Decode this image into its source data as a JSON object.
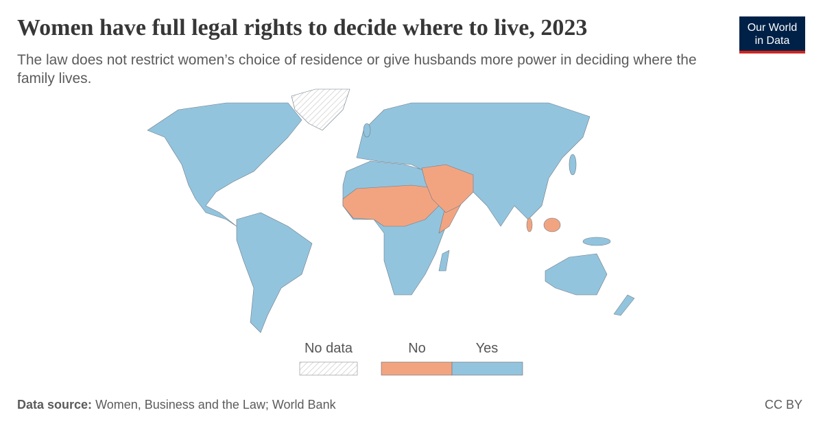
{
  "header": {
    "title": "Women have full legal rights to decide where to live, 2023",
    "subtitle": "The law does not restrict women’s choice of residence or give husbands more power in deciding where the family lives."
  },
  "logo": {
    "line1": "Our World",
    "line2": "in Data"
  },
  "legend": {
    "no_data": "No data",
    "categories": [
      {
        "label": "No",
        "color": "#f2a481"
      },
      {
        "label": "Yes",
        "color": "#93c4de"
      }
    ]
  },
  "colors": {
    "yes": "#93c4de",
    "no": "#f2a481",
    "no_data": "#e6e6e6",
    "border": "#6b7b86"
  },
  "footer": {
    "source_label": "Data source:",
    "source": "Women, Business and the Law; World Bank",
    "license": "CC BY"
  }
}
